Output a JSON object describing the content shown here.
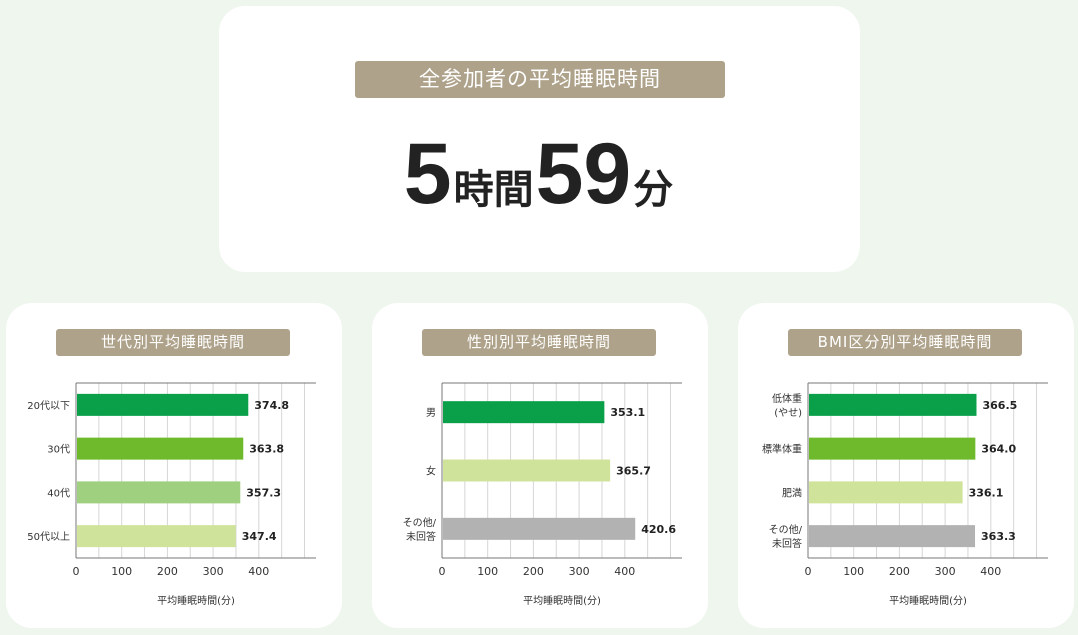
{
  "summary": {
    "label": "全参加者の平均睡眠時間",
    "hours": "5",
    "hours_unit": "時間",
    "minutes": "59",
    "minutes_unit": "分"
  },
  "chart_data": [
    {
      "type": "bar",
      "orientation": "horizontal",
      "title": "世代別平均睡眠時間",
      "categories": [
        "20代以下",
        "30代",
        "40代",
        "50代以上"
      ],
      "values": [
        374.8,
        363.8,
        357.3,
        347.4
      ],
      "value_labels": [
        "374.8",
        "363.8",
        "357.3",
        "347.4"
      ],
      "colors": [
        "#0aa04a",
        "#6fba2c",
        "#9fd080",
        "#d0e39a"
      ],
      "xlabel": "平均睡眠時間(分)",
      "xlim": [
        0,
        520
      ],
      "xticks": [
        "0",
        "100",
        "200",
        "300",
        "400"
      ],
      "grid": true
    },
    {
      "type": "bar",
      "orientation": "horizontal",
      "title": "性別別平均睡眠時間",
      "categories": [
        "男",
        "女",
        "その他/\n未回答"
      ],
      "values": [
        353.1,
        365.7,
        420.6
      ],
      "value_labels": [
        "353.1",
        "365.7",
        "420.6"
      ],
      "colors": [
        "#0aa04a",
        "#d0e39a",
        "#b2b2b2"
      ],
      "xlabel": "平均睡眠時間(分)",
      "xlim": [
        0,
        520
      ],
      "xticks": [
        "0",
        "100",
        "200",
        "300",
        "400"
      ],
      "grid": true
    },
    {
      "type": "bar",
      "orientation": "horizontal",
      "title": "BMI区分別平均睡眠時間",
      "categories": [
        "低体重\n(やせ)",
        "標準体重",
        "肥満",
        "その他/\n未回答"
      ],
      "values": [
        366.5,
        364.0,
        336.1,
        363.3
      ],
      "value_labels": [
        "366.5",
        "364.0",
        "336.1",
        "363.3"
      ],
      "colors": [
        "#0aa04a",
        "#6fba2c",
        "#d0e39a",
        "#b2b2b2"
      ],
      "xlabel": "平均睡眠時間(分)",
      "xlim": [
        0,
        520
      ],
      "xticks": [
        "0",
        "100",
        "200",
        "300",
        "400"
      ],
      "grid": true
    }
  ]
}
